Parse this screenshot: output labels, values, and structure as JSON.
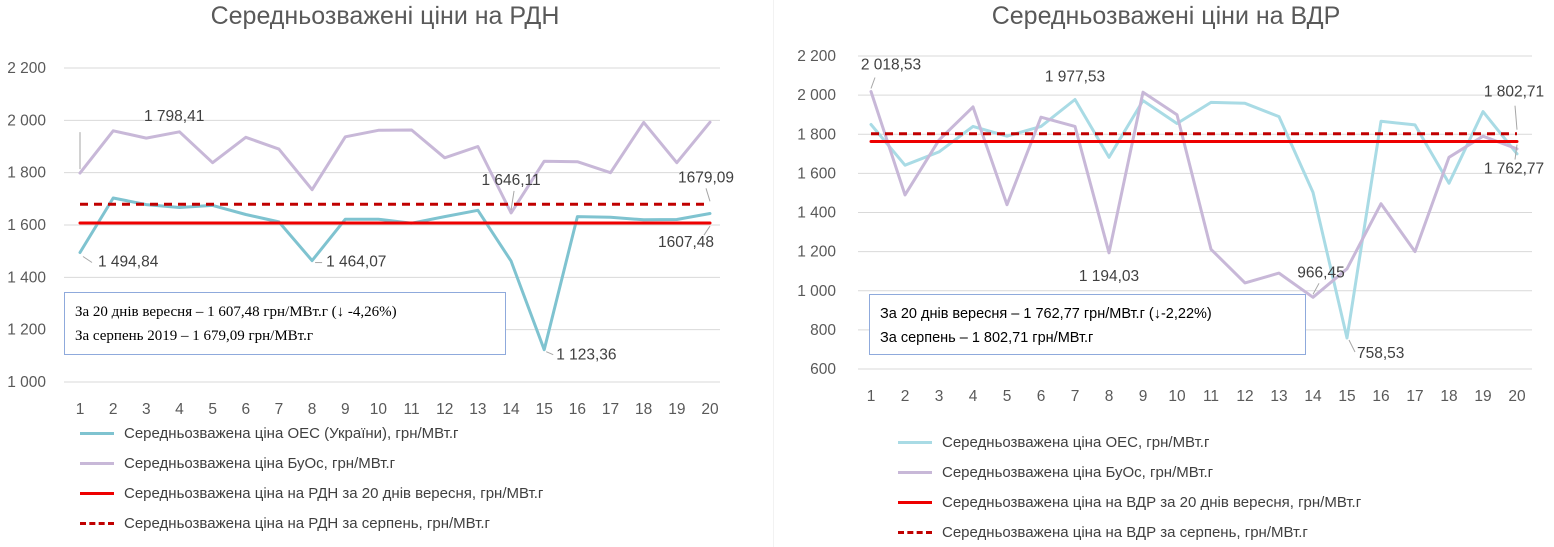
{
  "chart_data": [
    {
      "type": "line",
      "title": "Середньозважені ціни на РДН",
      "x": [
        1,
        2,
        3,
        4,
        5,
        6,
        7,
        8,
        9,
        10,
        11,
        12,
        13,
        14,
        15,
        16,
        17,
        18,
        19,
        20
      ],
      "ylim": [
        1000,
        2200
      ],
      "yticks": [
        1000,
        1200,
        1400,
        1600,
        1800,
        2000,
        2200
      ],
      "ytick_labels": [
        "1 000",
        "1 200",
        "1 400",
        "1 600",
        "1 800",
        "2 000",
        "2 200"
      ],
      "grid": true,
      "legend_position": "bottom",
      "series": [
        {
          "name": "Середньозважена ціна ОЕС (України), грн/МВт.г",
          "color": "#7fc3d0",
          "style": "solid",
          "values": [
            1494.84,
            1703,
            1678,
            1667,
            1675,
            1640,
            1612,
            1464.07,
            1622,
            1622,
            1607,
            1632,
            1656,
            1462,
            1123.36,
            1632,
            1630,
            1620,
            1621,
            1644
          ]
        },
        {
          "name": "Середньозважена ціна БуОс, грн/МВт.г",
          "color": "#c8b8d8",
          "style": "solid",
          "values": [
            1798.41,
            1960,
            1932,
            1956,
            1838,
            1935,
            1890,
            1735,
            1937,
            1962,
            1963,
            1857,
            1900,
            1646.11,
            1844,
            1842,
            1800,
            1992,
            1838,
            1993
          ]
        },
        {
          "name": "Середньозважена ціна на РДН за 20 днів вересня, грн/МВт.г",
          "color": "#ee0000",
          "style": "solid",
          "values": [
            1607.48,
            1607.48,
            1607.48,
            1607.48,
            1607.48,
            1607.48,
            1607.48,
            1607.48,
            1607.48,
            1607.48,
            1607.48,
            1607.48,
            1607.48,
            1607.48,
            1607.48,
            1607.48,
            1607.48,
            1607.48,
            1607.48,
            1607.48
          ]
        },
        {
          "name": "Середньозважена ціна на РДН за серпень, грн/МВт.г",
          "color": "#c00000",
          "style": "dashed",
          "values": [
            1679.09,
            1679.09,
            1679.09,
            1679.09,
            1679.09,
            1679.09,
            1679.09,
            1679.09,
            1679.09,
            1679.09,
            1679.09,
            1679.09,
            1679.09,
            1679.09,
            1679.09,
            1679.09,
            1679.09,
            1679.09,
            1679.09,
            1679.09
          ]
        }
      ],
      "annotations": [
        {
          "text": "1 798,41",
          "x": 1,
          "y": 1798.41,
          "anchor": "above"
        },
        {
          "text": "1 494,84",
          "x": 1,
          "y": 1494.84,
          "anchor": "below-right"
        },
        {
          "text": "1 464,07",
          "x": 8,
          "y": 1464.07,
          "anchor": "right"
        },
        {
          "text": "1 646,11",
          "x": 14,
          "y": 1646.11,
          "anchor": "above-right"
        },
        {
          "text": "1 123,36",
          "x": 15,
          "y": 1123.36,
          "anchor": "right"
        },
        {
          "text": "1679,09",
          "x": 20,
          "y": 1679.09,
          "anchor": "above"
        },
        {
          "text": "1607,48",
          "x": 20,
          "y": 1607.48,
          "anchor": "below"
        }
      ],
      "info_lines": [
        "За 20 днів вересня – 1 607,48 грн/МВт.г (↓ -4,26%)",
        "За серпень 2019 – 1 679,09 грн/МВт.г"
      ]
    },
    {
      "type": "line",
      "title": "Середньозважені ціни на ВДР",
      "x": [
        1,
        2,
        3,
        4,
        5,
        6,
        7,
        8,
        9,
        10,
        11,
        12,
        13,
        14,
        15,
        16,
        17,
        18,
        19,
        20
      ],
      "ylim": [
        600,
        2200
      ],
      "yticks": [
        600,
        800,
        1000,
        1200,
        1400,
        1600,
        1800,
        2000,
        2200
      ],
      "ytick_labels": [
        "600",
        "800",
        "1 000",
        "1 200",
        "1 400",
        "1 600",
        "1 800",
        "2 000",
        "2 200"
      ],
      "grid": true,
      "legend_position": "bottom",
      "series": [
        {
          "name": "Середньозважена ціна ОЕС, грн/МВт.г",
          "color": "#a9dbe5",
          "style": "solid",
          "values": [
            1850,
            1642,
            1710,
            1840,
            1790,
            1840,
            1977.53,
            1682,
            1972,
            1855,
            1963,
            1958,
            1890,
            1503,
            758.53,
            1866,
            1848,
            1550,
            1916,
            1700
          ]
        },
        {
          "name": "Середньозважена ціна БуОс, грн/МВт.г",
          "color": "#c8b8d8",
          "style": "solid",
          "values": [
            2018.53,
            1490,
            1770,
            1940,
            1440,
            1887,
            1840,
            1194.03,
            2015,
            1900,
            1212,
            1040,
            1090,
            966.45,
            1112,
            1445,
            1200,
            1682,
            1790,
            1725
          ]
        },
        {
          "name": "Середньозважена ціна на ВДР за 20 днів вересня, грн/МВт.г",
          "color": "#ee0000",
          "style": "solid",
          "values": [
            1762.77,
            1762.77,
            1762.77,
            1762.77,
            1762.77,
            1762.77,
            1762.77,
            1762.77,
            1762.77,
            1762.77,
            1762.77,
            1762.77,
            1762.77,
            1762.77,
            1762.77,
            1762.77,
            1762.77,
            1762.77,
            1762.77,
            1762.77
          ]
        },
        {
          "name": "Середньозважена ціна на ВДР за серпень, грн/МВт.г",
          "color": "#c00000",
          "style": "dashed",
          "values": [
            1802.71,
            1802.71,
            1802.71,
            1802.71,
            1802.71,
            1802.71,
            1802.71,
            1802.71,
            1802.71,
            1802.71,
            1802.71,
            1802.71,
            1802.71,
            1802.71,
            1802.71,
            1802.71,
            1802.71,
            1802.71,
            1802.71,
            1802.71
          ]
        }
      ],
      "annotations": [
        {
          "text": "2 018,53",
          "x": 1,
          "y": 2018.53,
          "anchor": "above"
        },
        {
          "text": "1 977,53",
          "x": 7,
          "y": 1977.53,
          "anchor": "above"
        },
        {
          "text": "1 194,03",
          "x": 8,
          "y": 1194.03,
          "anchor": "below"
        },
        {
          "text": "966,45",
          "x": 14,
          "y": 966.45,
          "anchor": "above"
        },
        {
          "text": "758,53",
          "x": 15,
          "y": 758.53,
          "anchor": "right"
        },
        {
          "text": "1 802,71",
          "x": 20,
          "y": 1802.71,
          "anchor": "above"
        },
        {
          "text": "1 762,77",
          "x": 20,
          "y": 1762.77,
          "anchor": "below"
        }
      ],
      "info_lines": [
        "За 20 днів вересня – 1 762,77 грн/МВт.г (↓-2,22%)",
        "За серпень – 1 802,71 грн/МВт.г"
      ]
    }
  ]
}
